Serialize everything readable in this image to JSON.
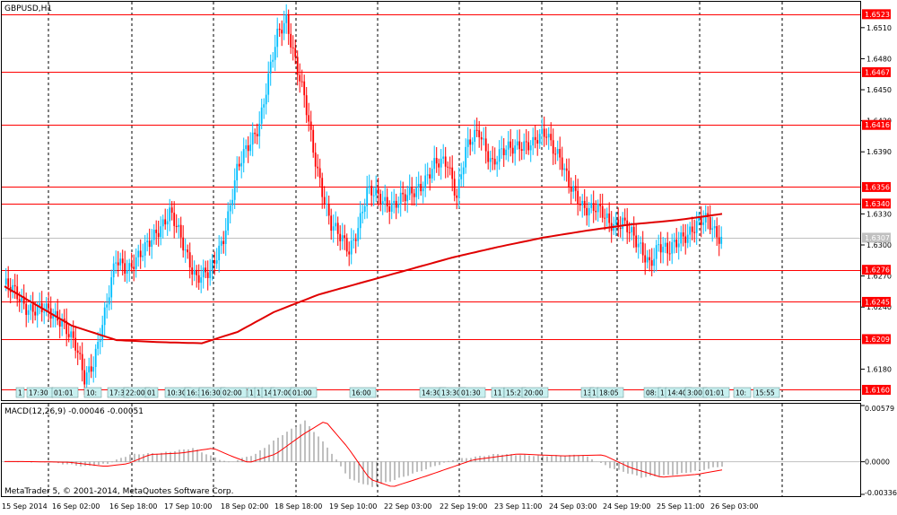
{
  "window": {
    "symbol_label": "GBPUSD,H1",
    "copyright": "MetaTrader 5, © 2001-2014, MetaQuotes Software Corp."
  },
  "colors": {
    "bull": "#00bfff",
    "bear": "#ff0000",
    "ma": "#e00000",
    "hline": "#ff0000",
    "grid": "#000000",
    "macd_hist": "#808080",
    "macd_signal": "#ff0000",
    "price_tag_bg": "#ff0000",
    "current_tag_bg": "#c0c0c0",
    "event_tag_bg": "#c8f0f0"
  },
  "price_axis": {
    "ticks": [
      "1.6510",
      "1.6480",
      "1.6450",
      "1.6420",
      "1.6390",
      "1.6330",
      "1.6300",
      "1.6270",
      "1.6240",
      "1.6180"
    ],
    "level_tags": [
      "1.6523",
      "1.6467",
      "1.6416",
      "1.6356",
      "1.6340",
      "1.6276",
      "1.6245",
      "1.6209",
      "1.6160"
    ],
    "current_tag": "1.6307"
  },
  "time_axis": {
    "labels": [
      "15 Sep 2014",
      "16 Sep 02:00",
      "16 Sep 18:00",
      "17 Sep 10:00",
      "18 Sep 02:00",
      "18 Sep 18:00",
      "19 Sep 10:00",
      "22 Sep 03:00",
      "22 Sep 19:00",
      "23 Sep 11:00",
      "24 Sep 03:00",
      "24 Sep 19:00",
      "25 Sep 11:00",
      "26 Sep 03:00"
    ]
  },
  "events": [
    "1",
    "17:30",
    "01:01",
    "10:",
    "17:3",
    "22:00",
    "01",
    "10:30",
    "16:30",
    "16:30",
    "02:00",
    "1",
    "1",
    "14",
    "17:00",
    "01:00",
    "16:00",
    "14:30",
    "13:30",
    "01:30",
    "11",
    "15:2",
    "20:00",
    "13",
    "1",
    "18:05",
    "08:",
    "1",
    "14:40",
    "3:00",
    "01:01",
    "10:",
    "15:55"
  ],
  "macd": {
    "label": "MACD(12,26,9) -0.00046 -0.00051",
    "axis": [
      "0.00579",
      "0.0000",
      "-0.00336"
    ]
  },
  "chart_data": {
    "type": "candlestick",
    "title": "GBPUSD,H1",
    "ylim": [
      1.615,
      1.6535
    ],
    "horizontal_levels": [
      1.6523,
      1.6467,
      1.6416,
      1.6356,
      1.634,
      1.6276,
      1.6245,
      1.6209,
      1.616
    ],
    "current_price": 1.6307,
    "anchors": [
      [
        0,
        1.6262
      ],
      [
        10,
        1.6242
      ],
      [
        18,
        1.6235
      ],
      [
        26,
        1.623
      ],
      [
        32,
        1.62
      ],
      [
        36,
        1.617
      ],
      [
        40,
        1.619
      ],
      [
        46,
        1.624
      ],
      [
        50,
        1.6285
      ],
      [
        56,
        1.628
      ],
      [
        62,
        1.629
      ],
      [
        68,
        1.6315
      ],
      [
        74,
        1.633
      ],
      [
        80,
        1.63
      ],
      [
        86,
        1.627
      ],
      [
        92,
        1.627
      ],
      [
        98,
        1.631
      ],
      [
        104,
        1.637
      ],
      [
        110,
        1.64
      ],
      [
        114,
        1.642
      ],
      [
        118,
        1.646
      ],
      [
        122,
        1.65
      ],
      [
        126,
        1.652
      ],
      [
        130,
        1.648
      ],
      [
        134,
        1.644
      ],
      [
        138,
        1.639
      ],
      [
        142,
        1.6355
      ],
      [
        146,
        1.632
      ],
      [
        150,
        1.6305
      ],
      [
        154,
        1.6295
      ],
      [
        158,
        1.632
      ],
      [
        162,
        1.635
      ],
      [
        168,
        1.6345
      ],
      [
        174,
        1.634
      ],
      [
        180,
        1.6345
      ],
      [
        186,
        1.636
      ],
      [
        192,
        1.6375
      ],
      [
        198,
        1.638
      ],
      [
        202,
        1.635
      ],
      [
        206,
        1.639
      ],
      [
        212,
        1.641
      ],
      [
        218,
        1.638
      ],
      [
        224,
        1.639
      ],
      [
        230,
        1.64
      ],
      [
        236,
        1.6395
      ],
      [
        242,
        1.641
      ],
      [
        248,
        1.6385
      ],
      [
        252,
        1.6355
      ],
      [
        258,
        1.634
      ],
      [
        264,
        1.6335
      ],
      [
        270,
        1.632
      ],
      [
        276,
        1.6325
      ],
      [
        282,
        1.63
      ],
      [
        288,
        1.6285
      ],
      [
        292,
        1.63
      ],
      [
        296,
        1.629
      ],
      [
        302,
        1.631
      ],
      [
        308,
        1.6315
      ],
      [
        314,
        1.6325
      ],
      [
        320,
        1.6307
      ]
    ],
    "ma_anchors": [
      [
        0,
        1.626
      ],
      [
        30,
        1.6222
      ],
      [
        50,
        1.6208
      ],
      [
        70,
        1.6206
      ],
      [
        88,
        1.6205
      ],
      [
        104,
        1.6216
      ],
      [
        120,
        1.6235
      ],
      [
        140,
        1.6252
      ],
      [
        160,
        1.6264
      ],
      [
        180,
        1.6276
      ],
      [
        200,
        1.6288
      ],
      [
        220,
        1.6298
      ],
      [
        240,
        1.6307
      ],
      [
        260,
        1.6314
      ],
      [
        280,
        1.632
      ],
      [
        300,
        1.6324
      ],
      [
        320,
        1.633
      ]
    ],
    "macd_anchors": [
      [
        0,
        2e-05
      ],
      [
        20,
        -5e-05
      ],
      [
        36,
        -0.00048
      ],
      [
        46,
        -0.0002
      ],
      [
        56,
        0.00075
      ],
      [
        70,
        0.0009
      ],
      [
        84,
        0.0014
      ],
      [
        92,
        0.0006
      ],
      [
        100,
        -0.0001
      ],
      [
        112,
        0.0008
      ],
      [
        124,
        0.0028
      ],
      [
        134,
        0.0042
      ],
      [
        144,
        0.0015
      ],
      [
        154,
        -0.0018
      ],
      [
        164,
        -0.0026
      ],
      [
        180,
        -0.0014
      ],
      [
        200,
        0.0002
      ],
      [
        220,
        0.0008
      ],
      [
        240,
        0.0006
      ],
      [
        258,
        0.0007
      ],
      [
        270,
        -0.0006
      ],
      [
        284,
        -0.0016
      ],
      [
        300,
        -0.0013
      ],
      [
        320,
        -0.00046
      ]
    ]
  }
}
